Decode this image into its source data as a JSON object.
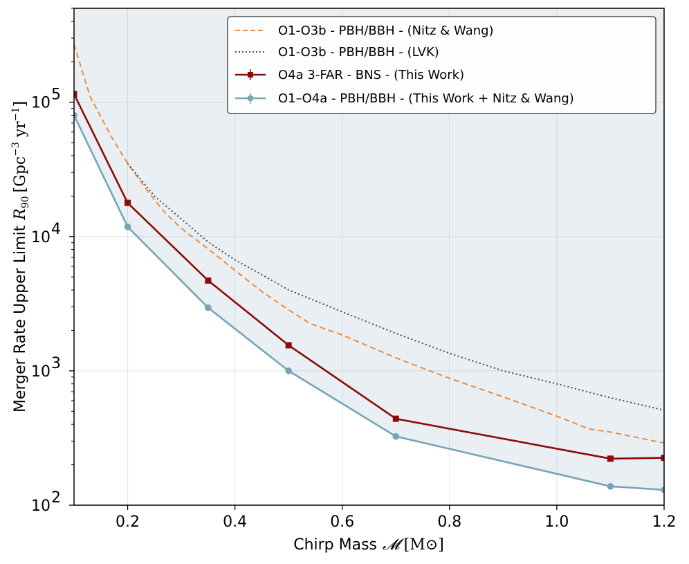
{
  "chart_data": {
    "type": "line",
    "xlabel": "Chirp Mass",
    "xlabel_symbol": "𝓜",
    "xlabel_unit": "[M⊙]",
    "ylabel": "Merger Rate Upper Limit",
    "ylabel_symbol": "R",
    "ylabel_symbol_sub": "90",
    "ylabel_unit_open": "[Gpc",
    "ylabel_unit_exp1": "−3",
    "ylabel_unit_mid": " yr",
    "ylabel_unit_exp2": "−1",
    "ylabel_unit_close": "]",
    "xlim": [
      0.1,
      1.2
    ],
    "ylim": [
      100,
      500000
    ],
    "yscale": "log",
    "grid": true,
    "legend_position": "top-right",
    "x_ticks": [
      {
        "value": 0.2,
        "label": "0.2"
      },
      {
        "value": 0.4,
        "label": "0.4"
      },
      {
        "value": 0.6,
        "label": "0.6"
      },
      {
        "value": 0.8,
        "label": "0.8"
      },
      {
        "value": 1.0,
        "label": "1.0"
      },
      {
        "value": 1.2,
        "label": "1.2"
      }
    ],
    "y_ticks": [
      {
        "value": 100,
        "base": "10",
        "exp": "2"
      },
      {
        "value": 1000,
        "base": "10",
        "exp": "3"
      },
      {
        "value": 10000,
        "base": "10",
        "exp": "4"
      },
      {
        "value": 100000,
        "base": "10",
        "exp": "5"
      }
    ],
    "series": [
      {
        "name": "O1-O3b - PBH/BBH - (Nitz & Wang)",
        "style": "dashed",
        "color": "#f08a40",
        "x": [
          0.1,
          0.13,
          0.17,
          0.2,
          0.24,
          0.27,
          0.3,
          0.35,
          0.4,
          0.45,
          0.5,
          0.54,
          0.6,
          0.7,
          0.8,
          0.9,
          1.0,
          1.06,
          1.1,
          1.2
        ],
        "y": [
          270000,
          110000,
          55000,
          35000,
          21000,
          15000,
          11500,
          8100,
          5600,
          3900,
          2850,
          2250,
          1850,
          1250,
          880,
          640,
          460,
          370,
          350,
          290
        ]
      },
      {
        "name": "O1-O3b - PBH/BBH - (LVK)",
        "style": "dotted",
        "color": "#3c4a5c",
        "x": [
          0.2,
          0.25,
          0.3,
          0.35,
          0.4,
          0.45,
          0.5,
          0.6,
          0.7,
          0.8,
          0.9,
          1.0,
          1.1,
          1.2
        ],
        "y": [
          35000,
          20000,
          13500,
          9100,
          6700,
          5200,
          4000,
          2750,
          1900,
          1350,
          1000,
          800,
          630,
          510
        ]
      },
      {
        "name": "O4a 3-FAR - BNS - (This Work)",
        "style": "solid-square",
        "color": "#8b0a0a",
        "x": [
          0.1,
          0.2,
          0.35,
          0.5,
          0.7,
          1.1,
          1.2
        ],
        "y": [
          115000,
          17800,
          4700,
          1550,
          440,
          222,
          225
        ]
      },
      {
        "name": "O1–O4a - PBH/BBH - (This Work + Nitz & Wang)",
        "style": "solid-circle",
        "color": "#76a5b7",
        "x": [
          0.1,
          0.2,
          0.35,
          0.5,
          0.7,
          1.1,
          1.2
        ],
        "y": [
          80000,
          11800,
          2950,
          1000,
          325,
          138,
          130
        ]
      }
    ],
    "excluded_region_fill": "#e9eff2"
  }
}
